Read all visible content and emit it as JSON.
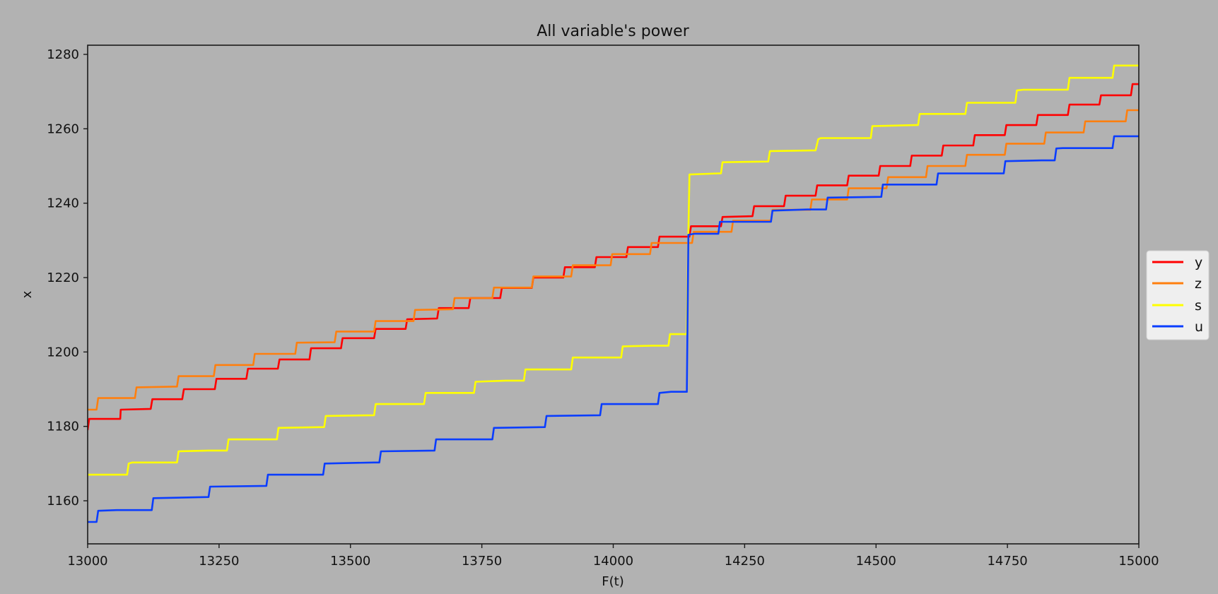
{
  "chart_data": {
    "type": "line",
    "title": "All variable's power",
    "xlabel": "F(t)",
    "ylabel": "x",
    "xlim": [
      13000,
      15000
    ],
    "ylim": [
      1148.5,
      1283
    ],
    "xticks": [
      13000,
      13250,
      13500,
      13750,
      14000,
      14250,
      14500,
      14750,
      15000
    ],
    "yticks": [
      1160,
      1180,
      1200,
      1220,
      1240,
      1260,
      1280
    ],
    "grid": false,
    "legend_position": "right, outside plot",
    "background": "#b2b2b2",
    "series": [
      {
        "name": "y",
        "color": "#ff0000",
        "drawstyle": "steps",
        "points": [
          [
            13000,
            1179
          ],
          [
            13003,
            1182
          ],
          [
            13062,
            1182
          ],
          [
            13063,
            1184.5
          ],
          [
            13120,
            1184.7
          ],
          [
            13123,
            1187.3
          ],
          [
            13180,
            1187.3
          ],
          [
            13183,
            1190
          ],
          [
            13242,
            1190
          ],
          [
            13245,
            1192.8
          ],
          [
            13302,
            1192.8
          ],
          [
            13305,
            1195.5
          ],
          [
            13362,
            1195.5
          ],
          [
            13365,
            1198
          ],
          [
            13422,
            1198
          ],
          [
            13425,
            1201
          ],
          [
            13482,
            1201
          ],
          [
            13485,
            1203.7
          ],
          [
            13545,
            1203.7
          ],
          [
            13548,
            1206.2
          ],
          [
            13605,
            1206.2
          ],
          [
            13608,
            1208.8
          ],
          [
            13665,
            1209
          ],
          [
            13668,
            1211.8
          ],
          [
            13725,
            1211.8
          ],
          [
            13728,
            1214.5
          ],
          [
            13785,
            1214.5
          ],
          [
            13788,
            1217.2
          ],
          [
            13845,
            1217.2
          ],
          [
            13848,
            1220
          ],
          [
            13905,
            1220
          ],
          [
            13908,
            1222.8
          ],
          [
            13965,
            1222.8
          ],
          [
            13968,
            1225.5
          ],
          [
            14025,
            1225.5
          ],
          [
            14028,
            1228.2
          ],
          [
            14085,
            1228.2
          ],
          [
            14088,
            1231
          ],
          [
            14145,
            1231
          ],
          [
            14148,
            1233.8
          ],
          [
            14205,
            1233.8
          ],
          [
            14208,
            1236.3
          ],
          [
            14265,
            1236.5
          ],
          [
            14268,
            1239.2
          ],
          [
            14325,
            1239.2
          ],
          [
            14328,
            1242
          ],
          [
            14385,
            1242
          ],
          [
            14388,
            1244.8
          ],
          [
            14445,
            1244.8
          ],
          [
            14448,
            1247.4
          ],
          [
            14505,
            1247.4
          ],
          [
            14508,
            1250
          ],
          [
            14565,
            1250
          ],
          [
            14568,
            1252.8
          ],
          [
            14625,
            1252.8
          ],
          [
            14628,
            1255.5
          ],
          [
            14685,
            1255.5
          ],
          [
            14688,
            1258.3
          ],
          [
            14745,
            1258.3
          ],
          [
            14748,
            1261
          ],
          [
            14805,
            1261
          ],
          [
            14808,
            1263.7
          ],
          [
            14865,
            1263.7
          ],
          [
            14868,
            1266.5
          ],
          [
            14925,
            1266.5
          ],
          [
            14928,
            1269
          ],
          [
            14985,
            1269
          ],
          [
            14988,
            1272
          ],
          [
            15000,
            1272
          ]
        ]
      },
      {
        "name": "z",
        "color": "#ff7f0e",
        "drawstyle": "steps",
        "points": [
          [
            13000,
            1184.5
          ],
          [
            13017,
            1184.5
          ],
          [
            13020,
            1187.6
          ],
          [
            13090,
            1187.6
          ],
          [
            13093,
            1190.5
          ],
          [
            13170,
            1190.7
          ],
          [
            13173,
            1193.5
          ],
          [
            13240,
            1193.5
          ],
          [
            13243,
            1196.5
          ],
          [
            13315,
            1196.5
          ],
          [
            13318,
            1199.5
          ],
          [
            13395,
            1199.5
          ],
          [
            13398,
            1202.5
          ],
          [
            13470,
            1202.6
          ],
          [
            13473,
            1205.5
          ],
          [
            13545,
            1205.5
          ],
          [
            13548,
            1208.3
          ],
          [
            13620,
            1208.3
          ],
          [
            13623,
            1211.3
          ],
          [
            13695,
            1211.5
          ],
          [
            13698,
            1214.5
          ],
          [
            13770,
            1214.5
          ],
          [
            13773,
            1217.3
          ],
          [
            13845,
            1217.3
          ],
          [
            13848,
            1220.3
          ],
          [
            13920,
            1220.3
          ],
          [
            13923,
            1223.3
          ],
          [
            13995,
            1223.3
          ],
          [
            13998,
            1226.3
          ],
          [
            14070,
            1226.3
          ],
          [
            14073,
            1229.3
          ],
          [
            14150,
            1229.3
          ],
          [
            14153,
            1232.3
          ],
          [
            14225,
            1232.3
          ],
          [
            14228,
            1235.3
          ],
          [
            14300,
            1235.3
          ],
          [
            14303,
            1238.2
          ],
          [
            14375,
            1238.2
          ],
          [
            14378,
            1241
          ],
          [
            14445,
            1241
          ],
          [
            14448,
            1244
          ],
          [
            14520,
            1244
          ],
          [
            14523,
            1247
          ],
          [
            14595,
            1247
          ],
          [
            14598,
            1250
          ],
          [
            14670,
            1250
          ],
          [
            14673,
            1253
          ],
          [
            14745,
            1253
          ],
          [
            14748,
            1256
          ],
          [
            14820,
            1256
          ],
          [
            14823,
            1259
          ],
          [
            14895,
            1259
          ],
          [
            14898,
            1262
          ],
          [
            14975,
            1262
          ],
          [
            14978,
            1265
          ],
          [
            15000,
            1265
          ]
        ]
      },
      {
        "name": "s",
        "color": "#ffff00",
        "drawstyle": "steps",
        "points": [
          [
            13000,
            1167
          ],
          [
            13075,
            1167
          ],
          [
            13078,
            1170
          ],
          [
            13085,
            1170.3
          ],
          [
            13170,
            1170.3
          ],
          [
            13173,
            1173.3
          ],
          [
            13230,
            1173.5
          ],
          [
            13265,
            1173.5
          ],
          [
            13268,
            1176.5
          ],
          [
            13360,
            1176.5
          ],
          [
            13363,
            1179.6
          ],
          [
            13450,
            1179.8
          ],
          [
            13453,
            1182.8
          ],
          [
            13545,
            1183
          ],
          [
            13548,
            1186
          ],
          [
            13640,
            1186
          ],
          [
            13643,
            1189
          ],
          [
            13735,
            1189
          ],
          [
            13738,
            1192
          ],
          [
            13795,
            1192.3
          ],
          [
            13830,
            1192.3
          ],
          [
            13833,
            1195.3
          ],
          [
            13920,
            1195.3
          ],
          [
            13923,
            1198.5
          ],
          [
            14015,
            1198.5
          ],
          [
            14018,
            1201.5
          ],
          [
            14075,
            1201.7
          ],
          [
            14105,
            1201.7
          ],
          [
            14108,
            1204.8
          ],
          [
            14140,
            1204.8
          ],
          [
            14143,
            1232
          ],
          [
            14145,
            1247.7
          ],
          [
            14200,
            1248
          ],
          [
            14205,
            1248
          ],
          [
            14208,
            1251
          ],
          [
            14295,
            1251.2
          ],
          [
            14298,
            1254
          ],
          [
            14385,
            1254.2
          ],
          [
            14390,
            1257.2
          ],
          [
            14395,
            1257.5
          ],
          [
            14490,
            1257.5
          ],
          [
            14493,
            1260.7
          ],
          [
            14575,
            1261
          ],
          [
            14580,
            1261
          ],
          [
            14583,
            1264
          ],
          [
            14670,
            1264
          ],
          [
            14673,
            1267
          ],
          [
            14765,
            1267
          ],
          [
            14768,
            1270.3
          ],
          [
            14780,
            1270.5
          ],
          [
            14865,
            1270.5
          ],
          [
            14868,
            1273.7
          ],
          [
            14950,
            1273.7
          ],
          [
            14953,
            1277
          ],
          [
            15000,
            1277
          ]
        ]
      },
      {
        "name": "u",
        "color": "#0a3dff",
        "drawstyle": "steps",
        "points": [
          [
            13000,
            1154.3
          ],
          [
            13017,
            1154.3
          ],
          [
            13020,
            1157.3
          ],
          [
            13055,
            1157.5
          ],
          [
            13122,
            1157.5
          ],
          [
            13125,
            1160.7
          ],
          [
            13230,
            1161
          ],
          [
            13233,
            1163.8
          ],
          [
            13340,
            1164
          ],
          [
            13343,
            1167
          ],
          [
            13448,
            1167
          ],
          [
            13451,
            1170
          ],
          [
            13545,
            1170.3
          ],
          [
            13555,
            1170.3
          ],
          [
            13558,
            1173.3
          ],
          [
            13660,
            1173.5
          ],
          [
            13663,
            1176.5
          ],
          [
            13770,
            1176.5
          ],
          [
            13773,
            1179.6
          ],
          [
            13870,
            1179.8
          ],
          [
            13873,
            1182.8
          ],
          [
            13975,
            1183
          ],
          [
            13978,
            1186
          ],
          [
            14085,
            1186
          ],
          [
            14088,
            1189
          ],
          [
            14110,
            1189.3
          ],
          [
            14140,
            1189.3
          ],
          [
            14143,
            1231.5
          ],
          [
            14155,
            1231.8
          ],
          [
            14200,
            1231.8
          ],
          [
            14203,
            1235
          ],
          [
            14300,
            1235
          ],
          [
            14303,
            1238
          ],
          [
            14370,
            1238.3
          ],
          [
            14405,
            1238.3
          ],
          [
            14408,
            1241.5
          ],
          [
            14510,
            1241.7
          ],
          [
            14513,
            1245
          ],
          [
            14615,
            1245
          ],
          [
            14618,
            1248
          ],
          [
            14710,
            1248
          ],
          [
            14743,
            1248
          ],
          [
            14746,
            1251.3
          ],
          [
            14815,
            1251.5
          ],
          [
            14840,
            1251.5
          ],
          [
            14843,
            1254.7
          ],
          [
            14855,
            1254.8
          ],
          [
            14950,
            1254.8
          ],
          [
            14953,
            1258
          ],
          [
            15000,
            1258
          ]
        ]
      }
    ]
  },
  "legend": {
    "items": [
      {
        "label": "y",
        "color": "#ff0000"
      },
      {
        "label": "z",
        "color": "#ff7f0e"
      },
      {
        "label": "s",
        "color": "#ffff00"
      },
      {
        "label": "u",
        "color": "#0a3dff"
      }
    ]
  }
}
